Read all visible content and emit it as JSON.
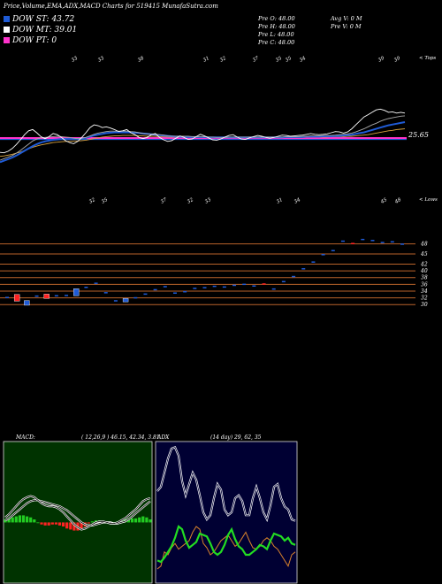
{
  "header": {
    "title": "Price,Volume,EMA,ADX,MACD Charts for 519415 MunafaSutra.com",
    "dow": [
      {
        "label": "DOW ST: 43.72",
        "color": "#1f5bd6"
      },
      {
        "label": "DOW MT: 39.01",
        "color": "#ffffff"
      },
      {
        "label": "DOW PT: 0",
        "color": "#ff33cc"
      }
    ],
    "prices": [
      "Pre   O: 48.00",
      "Pre   H: 48.00",
      "Pre   L: 48.00",
      "Pre   C: 48.00"
    ],
    "volume": [
      "Avg V: 0   M",
      "Pre   V: 0   M"
    ]
  },
  "chart_data": [
    {
      "type": "line",
      "panel": "price-ema",
      "corner_label": "< Tops",
      "top_labels": [
        "33",
        "33",
        "38",
        "31",
        "32",
        "37",
        "35",
        "35",
        "34",
        "39",
        "39"
      ],
      "last_value_label": "25.65",
      "x": [
        0,
        1,
        2,
        3,
        4,
        5,
        6,
        7,
        8,
        9,
        10,
        11,
        12,
        13,
        14,
        15,
        16,
        17,
        18,
        19,
        20,
        21,
        22,
        23,
        24,
        25,
        26,
        27,
        28,
        29,
        30,
        31,
        32,
        33,
        34,
        35,
        36,
        37,
        38,
        39,
        40,
        41,
        42,
        43,
        44,
        45,
        46,
        47,
        48,
        49,
        50,
        51,
        52,
        53,
        54,
        55,
        56,
        57,
        58,
        59,
        60,
        61,
        62,
        63,
        64,
        65,
        66,
        67,
        68,
        69,
        70,
        71,
        72,
        73,
        74,
        75,
        76,
        77,
        78,
        79,
        80,
        81,
        82,
        83,
        84,
        85,
        86,
        87,
        88,
        89,
        90,
        91,
        92,
        93,
        94,
        95,
        96,
        97,
        98,
        99
      ],
      "series": [
        {
          "color": "#ffffff",
          "values": [
            28,
            27.9,
            28.3,
            29,
            30,
            31.2,
            32.5,
            33.5,
            33.8,
            33,
            32,
            31.5,
            32,
            32.8,
            32.5,
            31.8,
            31,
            30.5,
            30.2,
            30.8,
            31.8,
            33,
            34.3,
            35,
            34.8,
            34.3,
            34.5,
            34.2,
            33.8,
            33.3,
            33.5,
            33.8,
            33,
            32.5,
            31.8,
            31.5,
            31.8,
            32.5,
            32.8,
            31.8,
            31.2,
            30.8,
            31,
            31.6,
            32.2,
            31.8,
            31.3,
            31.4,
            32,
            32.6,
            32.2,
            31.7,
            31.2,
            31.1,
            31.4,
            31.9,
            32.3,
            32.5,
            31.9,
            31.4,
            31.3,
            31.7,
            32,
            32.3,
            32.1,
            31.8,
            31.6,
            31.8,
            32.1,
            32.4,
            32.3,
            32.1,
            32.2,
            32.3,
            32.4,
            32.6,
            32.8,
            32.6,
            32.5,
            32.6,
            32.7,
            33,
            33.3,
            33.2,
            32.9,
            33.2,
            34,
            35,
            36,
            37,
            37.6,
            38.2,
            38.8,
            39,
            38.7,
            38.2,
            38.3,
            38,
            38.2,
            38
          ]
        },
        {
          "color": "#aaaaaa",
          "values": [
            26,
            26.4,
            26.8,
            27.2,
            27.8,
            28.5,
            29.3,
            30.1,
            30.9,
            31.4,
            31.7,
            31.8,
            31.9,
            32,
            32.1,
            32,
            31.9,
            31.8,
            31.6,
            31.5,
            31.6,
            31.8,
            32.2,
            32.6,
            32.9,
            33.1,
            33.3,
            33.4,
            33.4,
            33.4,
            33.4,
            33.4,
            33.3,
            33.2,
            33,
            32.8,
            32.7,
            32.6,
            32.6,
            32.5,
            32.4,
            32.2,
            32.1,
            32.1,
            32.1,
            32.1,
            32.1,
            32,
            32,
            32,
            32,
            31.9,
            31.9,
            31.8,
            31.8,
            31.8,
            31.9,
            31.9,
            31.9,
            31.9,
            31.9,
            31.9,
            31.9,
            31.9,
            31.9,
            31.9,
            31.9,
            31.9,
            31.9,
            31.9,
            32,
            32,
            32,
            32,
            32.1,
            32.1,
            32.2,
            32.2,
            32.2,
            32.3,
            32.3,
            32.3,
            32.4,
            32.5,
            32.6,
            32.7,
            32.9,
            33.2,
            33.6,
            34,
            34.5,
            35,
            35.4,
            35.9,
            36.3,
            36.6,
            36.8,
            37,
            37.2,
            37.3
          ]
        },
        {
          "color": "#1f5bd6",
          "values": [
            25.5,
            25.9,
            26.3,
            26.7,
            27.2,
            27.8,
            28.4,
            29,
            29.6,
            30.1,
            30.5,
            30.8,
            31,
            31.2,
            31.3,
            31.4,
            31.4,
            31.4,
            31.4,
            31.4,
            31.5,
            31.7,
            32,
            32.3,
            32.5,
            32.7,
            32.9,
            33,
            33.1,
            33.1,
            33.1,
            33.1,
            33.1,
            33,
            32.9,
            32.8,
            32.7,
            32.6,
            32.5,
            32.4,
            32.3,
            32.2,
            32.1,
            32,
            32,
            31.9,
            31.9,
            31.9,
            31.9,
            31.9,
            31.9,
            31.8,
            31.8,
            31.8,
            31.8,
            31.8,
            31.8,
            31.8,
            31.8,
            31.8,
            31.8,
            31.8,
            31.8,
            31.8,
            31.8,
            31.8,
            31.8,
            31.8,
            31.8,
            31.8,
            31.9,
            31.9,
            31.9,
            31.9,
            31.9,
            32,
            32,
            32,
            32,
            32.1,
            32.1,
            32.1,
            32.2,
            32.2,
            32.3,
            32.4,
            32.5,
            32.7,
            32.9,
            33.1,
            33.4,
            33.7,
            34,
            34.3,
            34.6,
            34.9,
            35.1,
            35.3,
            35.5,
            35.7
          ]
        },
        {
          "color": "#d9a441",
          "values": [
            27,
            27.1,
            27.3,
            27.5,
            27.8,
            28.1,
            28.5,
            28.9,
            29.3,
            29.6,
            29.9,
            30.1,
            30.3,
            30.5,
            30.6,
            30.7,
            30.8,
            30.8,
            30.9,
            30.9,
            31,
            31.1,
            31.3,
            31.5,
            31.7,
            31.9,
            32,
            32.1,
            32.2,
            32.2,
            32.3,
            32.3,
            32.3,
            32.3,
            32.2,
            32.2,
            32.1,
            32.1,
            32.1,
            32,
            32,
            31.9,
            31.9,
            31.9,
            31.9,
            31.9,
            31.9,
            31.8,
            31.8,
            31.8,
            31.8,
            31.8,
            31.8,
            31.8,
            31.8,
            31.8,
            31.8,
            31.8,
            31.8,
            31.8,
            31.8,
            31.8,
            31.8,
            31.8,
            31.8,
            31.8,
            31.8,
            31.8,
            31.8,
            31.8,
            31.8,
            31.8,
            31.8,
            31.8,
            31.8,
            31.9,
            31.9,
            31.9,
            31.9,
            31.9,
            31.9,
            32,
            32,
            32,
            32,
            32.1,
            32.1,
            32.2,
            32.3,
            32.4,
            32.5,
            32.7,
            32.9,
            33.1,
            33.3,
            33.5,
            33.6,
            33.8,
            33.9,
            34
          ]
        }
      ],
      "levels": [
        {
          "value": 31.6,
          "color": "#ff33cc"
        },
        {
          "value": 31.3,
          "color": "#1f5bd6"
        }
      ]
    },
    {
      "type": "bar",
      "panel": "price-boxes",
      "corner_label": "< Lows",
      "top_labels": [
        "32",
        "35",
        "37",
        "32",
        "33",
        "31",
        "34",
        "45",
        "48"
      ],
      "y_ticks": [
        "48",
        "45",
        "42",
        "40",
        "38",
        "36",
        "34",
        "32",
        "30"
      ],
      "y_tick_values": [
        48,
        45,
        42,
        40,
        38,
        36,
        34,
        32,
        30
      ],
      "ylim": [
        29,
        50
      ],
      "candles": [
        {
          "o": 32.3,
          "c": 32.2,
          "color": "#1f5bd6"
        },
        {
          "o": 33.0,
          "c": 31.0,
          "color": "#ff2222"
        },
        {
          "o": 31.2,
          "c": 29.8,
          "color": "#1f5bd6"
        },
        {
          "o": 32.7,
          "c": 32.6,
          "color": "#1f5bd6"
        },
        {
          "o": 33.1,
          "c": 31.8,
          "color": "#ff2222"
        },
        {
          "o": 32.8,
          "c": 32.7,
          "color": "#1f5bd6"
        },
        {
          "o": 32.9,
          "c": 32.8,
          "color": "#1f5bd6"
        },
        {
          "o": 32.6,
          "c": 34.7,
          "color": "#1f5bd6"
        },
        {
          "o": 35.3,
          "c": 35.2,
          "color": "#1f5bd6"
        },
        {
          "o": 36.5,
          "c": 36.4,
          "color": "#1f5bd6"
        },
        {
          "o": 33.7,
          "c": 33.6,
          "color": "#1f5bd6"
        },
        {
          "o": 31.3,
          "c": 31.2,
          "color": "#1f5bd6"
        },
        {
          "o": 31.8,
          "c": 30.8,
          "color": "#1f5bd6"
        },
        {
          "o": 32.2,
          "c": 32.1,
          "color": "#1f5bd6"
        },
        {
          "o": 33.3,
          "c": 33.2,
          "color": "#1f5bd6"
        },
        {
          "o": 34.6,
          "c": 34.5,
          "color": "#1f5bd6"
        },
        {
          "o": 35.5,
          "c": 35.4,
          "color": "#1f5bd6"
        },
        {
          "o": 33.6,
          "c": 33.5,
          "color": "#1f5bd6"
        },
        {
          "o": 34.0,
          "c": 33.9,
          "color": "#1f5bd6"
        },
        {
          "o": 35.0,
          "c": 34.9,
          "color": "#1f5bd6"
        },
        {
          "o": 35.2,
          "c": 35.1,
          "color": "#1f5bd6"
        },
        {
          "o": 35.6,
          "c": 35.5,
          "color": "#1f5bd6"
        },
        {
          "o": 35.4,
          "c": 35.3,
          "color": "#1f5bd6"
        },
        {
          "o": 35.9,
          "c": 35.8,
          "color": "#1f5bd6"
        },
        {
          "o": 36.2,
          "c": 36.1,
          "color": "#1f5bd6"
        },
        {
          "o": 35.7,
          "c": 35.6,
          "color": "#1f5bd6"
        },
        {
          "o": 36.3,
          "c": 35.9,
          "color": "#ff2222"
        },
        {
          "o": 34.8,
          "c": 34.7,
          "color": "#1f5bd6"
        },
        {
          "o": 37.0,
          "c": 36.9,
          "color": "#1f5bd6"
        },
        {
          "o": 38.5,
          "c": 38.4,
          "color": "#1f5bd6"
        },
        {
          "o": 40.8,
          "c": 40.7,
          "color": "#1f5bd6"
        },
        {
          "o": 42.8,
          "c": 42.7,
          "color": "#1f5bd6"
        },
        {
          "o": 45.0,
          "c": 44.9,
          "color": "#1f5bd6"
        },
        {
          "o": 46.2,
          "c": 46.1,
          "color": "#1f5bd6"
        },
        {
          "o": 49.0,
          "c": 48.9,
          "color": "#1f5bd6"
        },
        {
          "o": 48.3,
          "c": 48.0,
          "color": "#ff2222"
        },
        {
          "o": 49.5,
          "c": 49.4,
          "color": "#1f5bd6"
        },
        {
          "o": 49.2,
          "c": 49.1,
          "color": "#1f5bd6"
        },
        {
          "o": 48.6,
          "c": 48.5,
          "color": "#1f5bd6"
        },
        {
          "o": 48.8,
          "c": 48.7,
          "color": "#1f5bd6"
        },
        {
          "o": 48.1,
          "c": 48.0,
          "color": "#1f5bd6"
        }
      ]
    },
    {
      "type": "line",
      "panel": "macd",
      "label": "MACD:",
      "values_text": "( 12,26,9 ) 46.15, 42.34, 3.81",
      "ylim": [
        -6,
        8
      ],
      "macd": [
        0.5,
        0.8,
        1.2,
        1.6,
        2,
        2.3,
        2.5,
        2.6,
        2.5,
        2.2,
        1.9,
        1.7,
        1.6,
        1.6,
        1.5,
        1.3,
        1,
        0.6,
        0.2,
        -0.2,
        -0.5,
        -0.7,
        -0.6,
        -0.4,
        -0.2,
        0,
        0.1,
        0.1,
        0,
        -0.1,
        -0.1,
        0,
        0.2,
        0.4,
        0.7,
        1,
        1.3,
        1.7,
        2.1,
        2.3,
        2.4
      ],
      "signal": [
        0.2,
        0.4,
        0.7,
        1,
        1.3,
        1.6,
        1.9,
        2.1,
        2.2,
        2.2,
        2.1,
        2,
        1.9,
        1.8,
        1.7,
        1.6,
        1.4,
        1.2,
        0.9,
        0.6,
        0.3,
        0,
        -0.2,
        -0.3,
        -0.3,
        -0.2,
        -0.1,
        0,
        0,
        0,
        -0.1,
        -0.1,
        0,
        0.1,
        0.3,
        0.6,
        0.9,
        1.2,
        1.5,
        1.8,
        2.1
      ],
      "hist": [
        0.3,
        0.4,
        0.5,
        0.6,
        0.7,
        0.7,
        0.6,
        0.5,
        0.3,
        0,
        -0.2,
        -0.3,
        -0.3,
        -0.2,
        -0.2,
        -0.3,
        -0.4,
        -0.6,
        -0.7,
        -0.8,
        -0.8,
        -0.7,
        -0.4,
        -0.1,
        0.1,
        0.2,
        0.2,
        0.1,
        0,
        -0.1,
        0,
        0.1,
        0.2,
        0.3,
        0.4,
        0.4,
        0.4,
        0.5,
        0.6,
        0.5,
        0.3
      ]
    },
    {
      "type": "line",
      "panel": "adx",
      "label": "ADX",
      "values_text": "(14 day) 29, 62, 35",
      "ylim": [
        0,
        100
      ],
      "plus_di": [
        65,
        68,
        78,
        88,
        95,
        96,
        90,
        72,
        62,
        70,
        78,
        73,
        62,
        50,
        45,
        48,
        60,
        70,
        66,
        52,
        48,
        50,
        60,
        62,
        58,
        48,
        48,
        60,
        68,
        60,
        50,
        45,
        55,
        68,
        70,
        60,
        54,
        52,
        45,
        44
      ],
      "minus_di": [
        10,
        12,
        22,
        20,
        25,
        28,
        24,
        26,
        28,
        30,
        36,
        40,
        38,
        28,
        25,
        20,
        22,
        26,
        30,
        32,
        34,
        30,
        26,
        28,
        32,
        36,
        30,
        25,
        24,
        26,
        30,
        32,
        30,
        26,
        24,
        20,
        16,
        12,
        20,
        22
      ],
      "adx_line": [
        16,
        15,
        18,
        22,
        26,
        32,
        40,
        38,
        30,
        25,
        27,
        29,
        35,
        34,
        33,
        28,
        22,
        20,
        22,
        27,
        34,
        38,
        31,
        26,
        24,
        20,
        20,
        22,
        24,
        27,
        26,
        24,
        30,
        35,
        34,
        33,
        30,
        32,
        28,
        27
      ]
    }
  ]
}
